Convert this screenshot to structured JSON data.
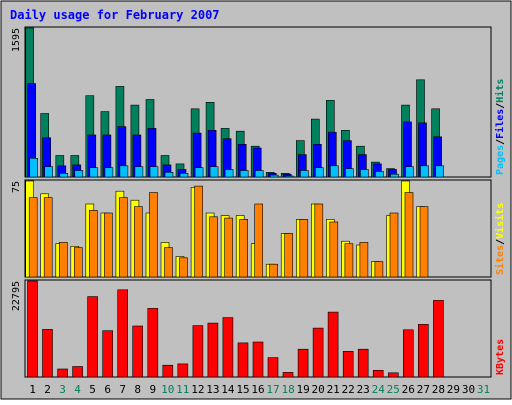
{
  "chart_data": {
    "title": "Daily usage for February 2007",
    "colors": {
      "background": "#c0c0c0",
      "title": "#0000ff",
      "hits": "#00805c",
      "files": "#0000ff",
      "pages": "#00c0ff",
      "visits": "#ffff00",
      "sites": "#ff8000",
      "kbytes": "#ff0000",
      "weekday_label": "#000000",
      "weekend_label": "#00805c"
    },
    "days": [
      "1",
      "2",
      "3",
      "4",
      "5",
      "6",
      "7",
      "8",
      "9",
      "10",
      "11",
      "12",
      "13",
      "14",
      "15",
      "16",
      "17",
      "18",
      "19",
      "20",
      "21",
      "22",
      "23",
      "24",
      "25",
      "26",
      "27",
      "28",
      "29",
      "30",
      "31"
    ],
    "weekend_days": [
      "3",
      "4",
      "10",
      "11",
      "17",
      "18",
      "24",
      "25",
      "31"
    ],
    "panels": [
      {
        "type": "bar",
        "ymax_label": "1595",
        "ylim": [
          0,
          1595
        ],
        "axis_labels": [
          "Hits",
          "Files",
          "Pages"
        ],
        "series": [
          {
            "name": "Hits",
            "values": [
              1595,
              680,
              230,
              230,
              870,
              700,
              970,
              770,
              830,
              230,
              140,
              730,
              800,
              520,
              490,
              330,
              50,
              40,
              390,
              620,
              820,
              500,
              330,
              160,
              90,
              770,
              1040,
              730,
              null,
              null,
              null
            ]
          },
          {
            "name": "Files",
            "values": [
              1000,
              420,
              120,
              130,
              450,
              450,
              540,
              450,
              520,
              130,
              80,
              470,
              500,
              410,
              350,
              310,
              40,
              30,
              240,
              350,
              480,
              390,
              240,
              140,
              80,
              590,
              580,
              430,
              null,
              null,
              null
            ]
          },
          {
            "name": "Pages",
            "values": [
              200,
              110,
              40,
              70,
              100,
              100,
              120,
              110,
              110,
              50,
              40,
              100,
              110,
              80,
              70,
              70,
              20,
              10,
              70,
              100,
              120,
              90,
              80,
              60,
              30,
              110,
              120,
              120,
              null,
              null,
              null
            ]
          }
        ]
      },
      {
        "type": "bar",
        "ymax_label": "75",
        "ylim": [
          0,
          75
        ],
        "axis_labels": [
          "Visits",
          "Sites"
        ],
        "series": [
          {
            "name": "Visits",
            "values": [
              75,
              65,
              26,
              24,
              57,
              50,
              67,
              60,
              50,
              27,
              16,
              70,
              50,
              48,
              48,
              26,
              10,
              34,
              45,
              57,
              45,
              28,
              25,
              12,
              48,
              75,
              55,
              null,
              null,
              null,
              null
            ]
          },
          {
            "name": "Sites",
            "values": [
              62,
              62,
              27,
              23,
              52,
              50,
              62,
              55,
              66,
              23,
              15,
              71,
              47,
              46,
              45,
              57,
              10,
              34,
              45,
              57,
              43,
              26,
              27,
              12,
              50,
              66,
              55,
              null,
              null,
              null,
              null
            ]
          }
        ]
      },
      {
        "type": "bar",
        "ymax_label": "22795",
        "ylim": [
          0,
          22795
        ],
        "axis_labels": [
          "KBytes"
        ],
        "series": [
          {
            "name": "KBytes",
            "values": [
              22795,
              11300,
              1900,
              2500,
              19100,
              11000,
              20700,
              12100,
              16300,
              2800,
              3100,
              12200,
              12800,
              14100,
              8100,
              8300,
              4600,
              1100,
              6600,
              11600,
              15400,
              6100,
              6600,
              1600,
              1000,
              11200,
              12500,
              18200,
              null,
              null,
              null
            ]
          }
        ]
      }
    ]
  }
}
